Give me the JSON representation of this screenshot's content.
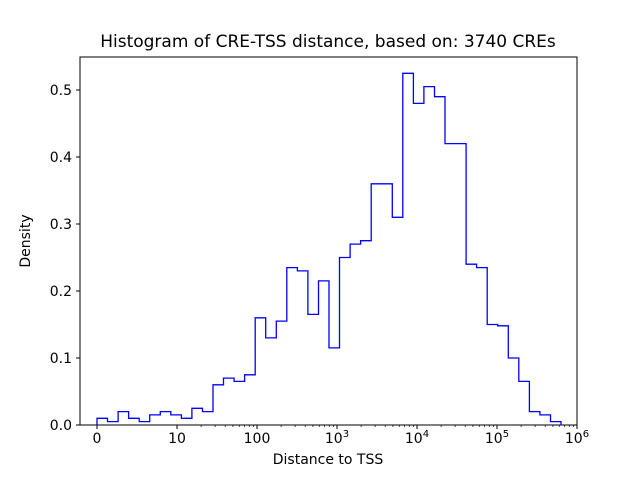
{
  "figure": {
    "background": "#ffffff"
  },
  "chart_data": {
    "type": "bar",
    "subtype": "step-histogram",
    "title": "Histogram of CRE-TSS distance, based on: 3740 CREs",
    "xlabel": "Distance to TSS",
    "ylabel": "Density",
    "x_scale": "symlog",
    "line_color": "#0000ff",
    "axis_color": "#000000",
    "grid": false,
    "legend": "none",
    "x_ticks": [
      {
        "label": "0",
        "u": 0
      },
      {
        "label": "10",
        "u": 1
      },
      {
        "label": "100",
        "u": 2
      },
      {
        "label": "10^3",
        "u": 3
      },
      {
        "label": "10^4",
        "u": 4
      },
      {
        "label": "10^5",
        "u": 5
      },
      {
        "label": "10^6",
        "u": 6
      }
    ],
    "y_ticks": [
      0.0,
      0.1,
      0.2,
      0.3,
      0.4,
      0.5
    ],
    "ylim": [
      0.0,
      0.55
    ],
    "xlim_label": "0 to 1e6 (symlog)",
    "bins": {
      "u_start": 0.0,
      "u_width": 0.13182,
      "note": "u is position in decades along the symlog x-axis (0=x0 tick, 1=10, 2=100, 3=1e3, 4=1e4, 5=1e5, 6=1e6)",
      "densities": [
        0.01,
        0.005,
        0.02,
        0.01,
        0.005,
        0.015,
        0.02,
        0.015,
        0.01,
        0.025,
        0.02,
        0.06,
        0.07,
        0.065,
        0.075,
        0.16,
        0.13,
        0.155,
        0.235,
        0.23,
        0.165,
        0.215,
        0.115,
        0.25,
        0.27,
        0.275,
        0.36,
        0.36,
        0.31,
        0.525,
        0.48,
        0.505,
        0.49,
        0.42,
        0.42,
        0.24,
        0.235,
        0.15,
        0.148,
        0.1,
        0.065,
        0.02,
        0.015,
        0.005
      ]
    }
  }
}
